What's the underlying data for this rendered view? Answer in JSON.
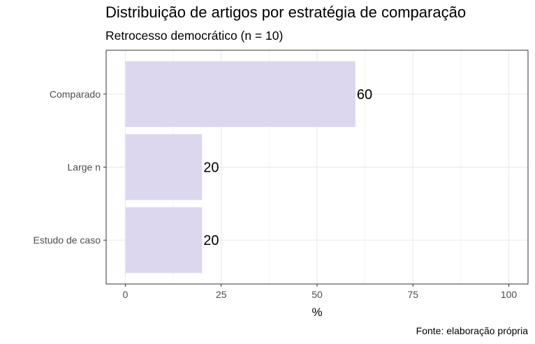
{
  "chart_data": {
    "type": "bar",
    "orientation": "horizontal",
    "title": "Distribuição de artigos por estratégia de comparação",
    "subtitle": "Retrocesso democrático (n = 10)",
    "caption": "Fonte: elaboração própria",
    "xlabel": "%",
    "ylabel": "",
    "categories": [
      "Comparado",
      "Large n",
      "Estudo de caso"
    ],
    "values": [
      60,
      20,
      20
    ],
    "data_labels": [
      "60",
      "20",
      "20"
    ],
    "xlim": [
      0,
      100
    ],
    "xticks": [
      0,
      25,
      50,
      75,
      100
    ],
    "bar_color": "#dcd7ee",
    "grid": true,
    "legend": "none"
  }
}
